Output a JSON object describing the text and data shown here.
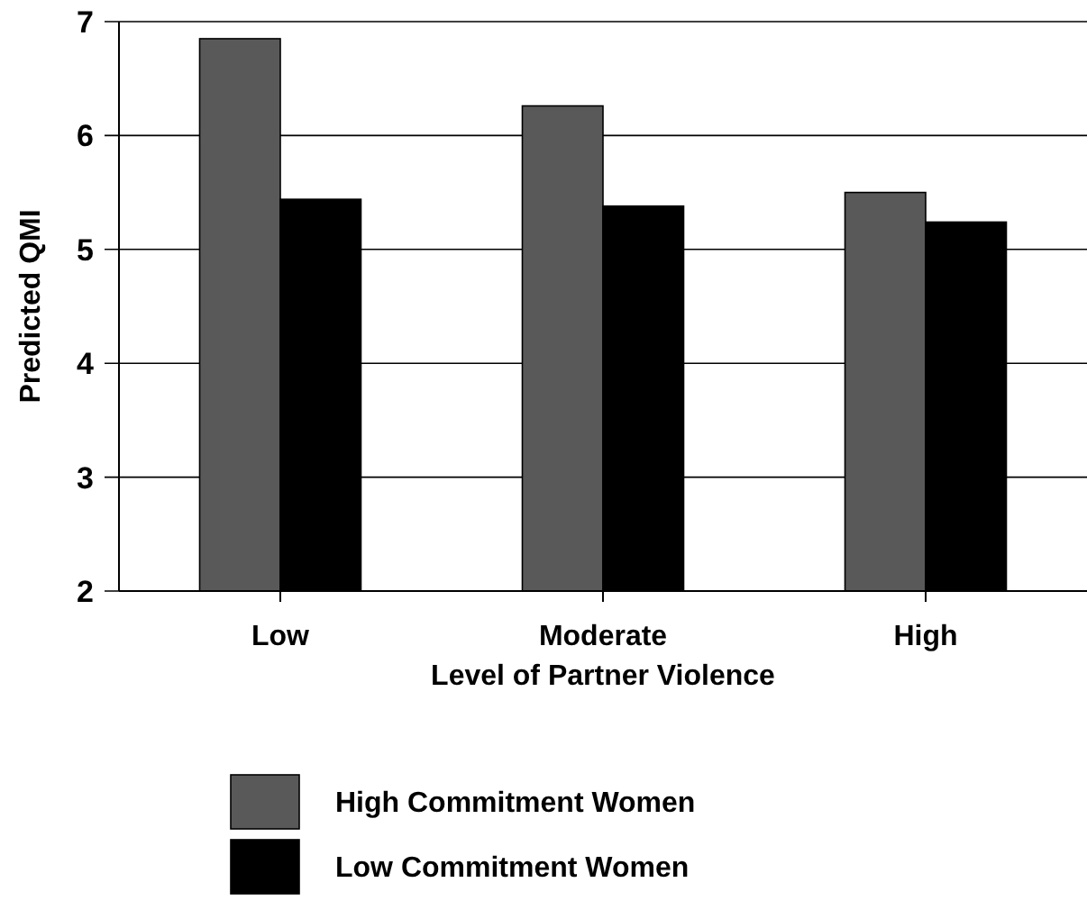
{
  "chart_data": {
    "type": "bar",
    "xlabel": "Level of Partner Violence",
    "ylabel": "Predicted QMI",
    "categories": [
      "Low",
      "Moderate",
      "High"
    ],
    "series": [
      {
        "name": "High Commitment Women",
        "color": "#595959",
        "values": [
          6.85,
          6.26,
          5.5
        ]
      },
      {
        "name": "Low Commitment Women",
        "color": "#000000",
        "values": [
          5.44,
          5.38,
          5.24
        ]
      }
    ],
    "ylim": [
      2,
      7
    ],
    "yticks": [
      2,
      3,
      4,
      5,
      6,
      7
    ],
    "grid": "y",
    "legend": "bottom"
  }
}
